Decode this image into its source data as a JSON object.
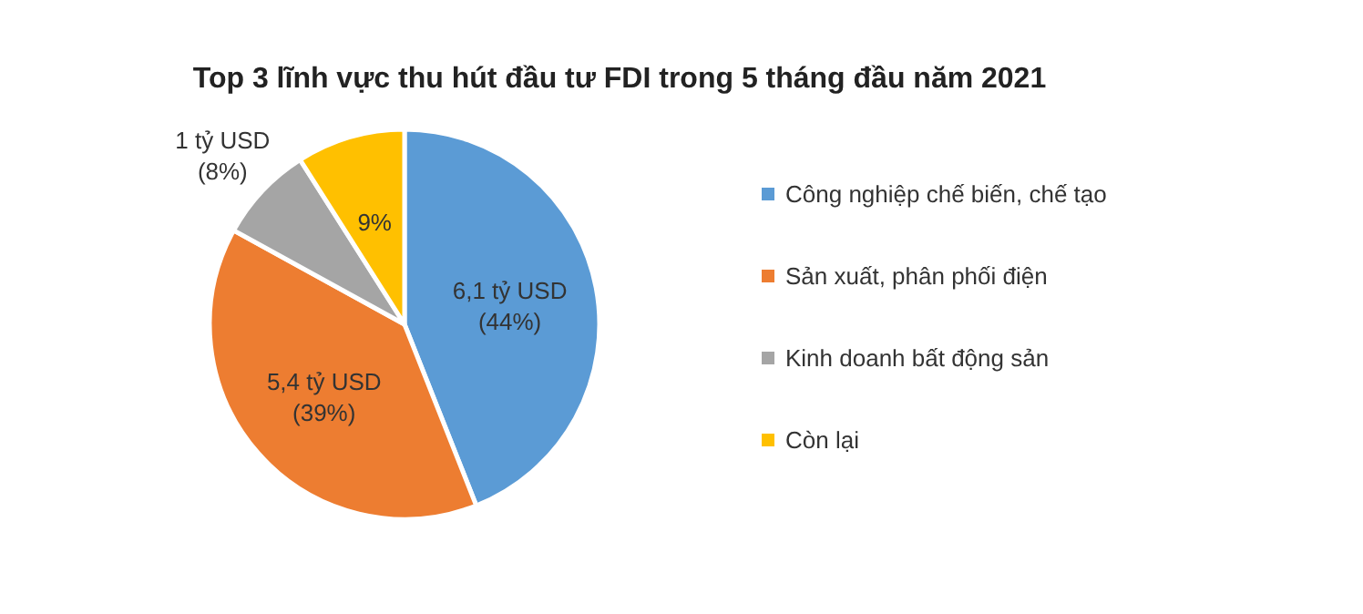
{
  "chart_data": {
    "type": "pie",
    "title": "Top 3 lĩnh vực thu hút đầu tư FDI trong 5 tháng đầu năm 2021",
    "categories": [
      "Công nghiệp chế biến, chế tạo",
      "Sản xuất, phân phối điện",
      "Kinh doanh bất động sản",
      "Còn lại"
    ],
    "values": [
      44,
      39,
      8,
      9
    ],
    "colors": [
      "#5b9bd5",
      "#ed7d31",
      "#a5a5a5",
      "#ffc000"
    ],
    "value_labels": [
      "6,1 tỷ USD\n(44%)",
      "5,4 tỷ USD\n(39%)",
      "1 tỷ USD\n(8%)",
      "9%"
    ],
    "legend": "right"
  }
}
